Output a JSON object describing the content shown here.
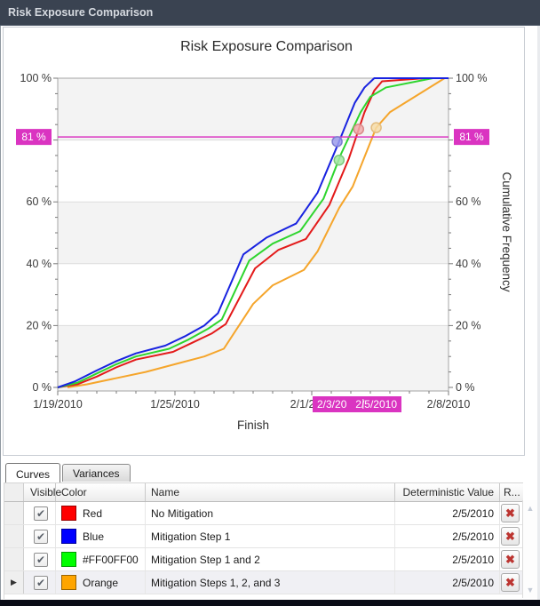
{
  "window": {
    "title": "Risk Exposure Comparison"
  },
  "chart": {
    "title": "Risk Exposure Comparison",
    "x_axis_title": "Finish",
    "y_axis_title": "Cumulative Frequency"
  },
  "chart_data": {
    "type": "line",
    "title": "Risk Exposure Comparison",
    "xlabel": "Finish",
    "ylabel": "Cumulative Frequency",
    "x_unit": "days from 1/19/2010",
    "ylim": [
      0,
      100
    ],
    "grid": "horizontal",
    "legend_position": "none",
    "x_ticks": [
      {
        "day": 0,
        "label": "1/19/2010"
      },
      {
        "day": 6,
        "label": "1/25/2010"
      },
      {
        "day": 13,
        "label": "2/1/2010"
      },
      {
        "day": 20,
        "label": "2/8/2010"
      }
    ],
    "y_ticks": [
      {
        "pct": 0,
        "label": "0 %"
      },
      {
        "pct": 20,
        "label": "20 %"
      },
      {
        "pct": 40,
        "label": "40 %"
      },
      {
        "pct": 60,
        "label": "60 %"
      },
      {
        "pct": 100,
        "label": "100 %"
      }
    ],
    "threshold": {
      "pct": 81,
      "label": "81 %",
      "color": "#da34c1"
    },
    "tracker": {
      "label_clipped": "2/3/20",
      "label": "2/5/2010",
      "color": "#da34c1"
    },
    "series": [
      {
        "name": "Mitigation Steps 1, 2, and 3",
        "color": "#f5a52b",
        "points": [
          [
            0.5,
            0
          ],
          [
            1.5,
            1
          ],
          [
            3,
            3
          ],
          [
            4.5,
            5
          ],
          [
            6,
            7.5
          ],
          [
            7.5,
            10
          ],
          [
            8.5,
            12.5
          ],
          [
            10,
            27
          ],
          [
            11,
            33
          ],
          [
            12.6,
            38
          ],
          [
            13.3,
            44
          ],
          [
            14.4,
            58
          ],
          [
            15.1,
            65
          ],
          [
            16.3,
            84
          ],
          [
            17,
            89
          ],
          [
            19.8,
            100
          ],
          [
            20,
            100
          ]
        ]
      },
      {
        "name": "No Mitigation",
        "color": "#e31a1a",
        "points": [
          [
            0,
            0
          ],
          [
            1,
            1
          ],
          [
            2,
            3.5
          ],
          [
            3,
            6.5
          ],
          [
            4,
            9
          ],
          [
            5.9,
            11.5
          ],
          [
            6.9,
            14.5
          ],
          [
            7.9,
            17.5
          ],
          [
            8.6,
            20.5
          ],
          [
            10.1,
            38.5
          ],
          [
            11.3,
            44.5
          ],
          [
            12.7,
            48
          ],
          [
            13.9,
            59
          ],
          [
            14.9,
            74
          ],
          [
            15.7,
            89
          ],
          [
            16.2,
            96
          ],
          [
            16.6,
            99
          ],
          [
            18.8,
            100
          ],
          [
            20,
            100
          ]
        ]
      },
      {
        "name": "Mitigation Step 1 and 2",
        "color": "#2ed52e",
        "points": [
          [
            0,
            0
          ],
          [
            1,
            1.5
          ],
          [
            2,
            4.5
          ],
          [
            3,
            7.5
          ],
          [
            4,
            10
          ],
          [
            5.7,
            12.5
          ],
          [
            6.7,
            15.5
          ],
          [
            7.7,
            19
          ],
          [
            8.4,
            22
          ],
          [
            9.8,
            41
          ],
          [
            11,
            46.5
          ],
          [
            12.4,
            50.5
          ],
          [
            13.6,
            61
          ],
          [
            14.5,
            75.5
          ],
          [
            15.5,
            89
          ],
          [
            16,
            94
          ],
          [
            16.8,
            97
          ],
          [
            19.2,
            100
          ],
          [
            20,
            100
          ]
        ]
      },
      {
        "name": "Mitigation Step 1",
        "color": "#1822e0",
        "points": [
          [
            0,
            0
          ],
          [
            0.9,
            2
          ],
          [
            2,
            5.5
          ],
          [
            3,
            8.5
          ],
          [
            4,
            11
          ],
          [
            5.5,
            13.5
          ],
          [
            6.5,
            16.5
          ],
          [
            7.5,
            20
          ],
          [
            8.2,
            24
          ],
          [
            9.5,
            43
          ],
          [
            10.7,
            48.5
          ],
          [
            12.2,
            53
          ],
          [
            13.3,
            63
          ],
          [
            14.3,
            78
          ],
          [
            15.2,
            92
          ],
          [
            15.7,
            97
          ],
          [
            16.2,
            100
          ],
          [
            20,
            100
          ]
        ]
      }
    ],
    "markers": [
      {
        "series": "Mitigation Step 1",
        "day": 14.3,
        "pct": 79.5,
        "fill": "#9c9cec",
        "stroke": "#7b7bd0"
      },
      {
        "series": "Mitigation Step 1 and 2",
        "day": 14.4,
        "pct": 73.5,
        "fill": "#a6e8a6",
        "stroke": "#7cc97c"
      },
      {
        "series": "No Mitigation",
        "day": 15.4,
        "pct": 83.5,
        "fill": "#f0acac",
        "stroke": "#d98a8a"
      },
      {
        "series": "Mitigation Steps 1, 2, and 3",
        "day": 16.3,
        "pct": 84,
        "fill": "#f6dca8",
        "stroke": "#e3bc7e"
      }
    ]
  },
  "tabs": [
    {
      "label": "Curves",
      "active": true
    },
    {
      "label": "Variances",
      "active": false
    }
  ],
  "table": {
    "columns": [
      "Visible",
      "Color",
      "Name",
      "Deterministic Value",
      "R..."
    ],
    "rows": [
      {
        "visible": true,
        "color_name": "Red",
        "color_hex": "#ff0000",
        "name": "No Mitigation",
        "deterministic_value": "2/5/2010",
        "current": false
      },
      {
        "visible": true,
        "color_name": "Blue",
        "color_hex": "#0000ff",
        "name": "Mitigation Step 1",
        "deterministic_value": "2/5/2010",
        "current": false
      },
      {
        "visible": true,
        "color_name": "#FF00FF00",
        "color_hex": "#00ff00",
        "name": "Mitigation Step 1 and 2",
        "deterministic_value": "2/5/2010",
        "current": false
      },
      {
        "visible": true,
        "color_name": "Orange",
        "color_hex": "#ffa500",
        "name": "Mitigation Steps 1, 2, and 3",
        "deterministic_value": "2/5/2010",
        "current": true
      }
    ]
  }
}
